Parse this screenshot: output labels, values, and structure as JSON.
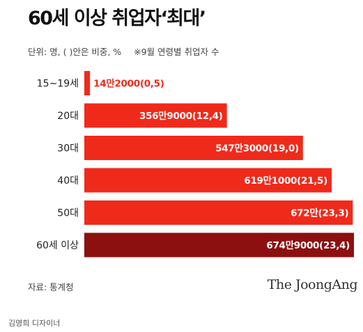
{
  "header": {
    "title": "60세 이상 취업자‘최대’",
    "unit_note": "단위: 명, ( )안은 비중, %",
    "footnote": "※9월 연령별 취업자 수"
  },
  "footer": {
    "source": "자료: 통계청",
    "logo_text": "The JoongAng",
    "designer": "김영희 디자이너"
  },
  "colors": {
    "bar_primary": "#f02a1b",
    "bar_highlight": "#8c1010",
    "label_outside": "#f02a1b",
    "label_inside": "#ffffff"
  },
  "chart_data": {
    "type": "bar",
    "orientation": "horizontal",
    "categories": [
      "15~19세",
      "20대",
      "30대",
      "40대",
      "50대",
      "60세 이상"
    ],
    "values": [
      142000,
      3569000,
      5473000,
      6191000,
      6720000,
      6749000
    ],
    "shares": [
      0.5,
      12.4,
      19.0,
      21.5,
      23.3,
      23.4
    ],
    "value_labels": [
      "14만2000(0,5)",
      "356만9000(12,4)",
      "547만3000(19,0)",
      "619만1000(21,5)",
      "672만(23,3)",
      "674만9000(23,4)"
    ],
    "highlight_index": 5,
    "xlim": [
      0,
      6749000
    ],
    "grid": false,
    "legend": "none"
  }
}
